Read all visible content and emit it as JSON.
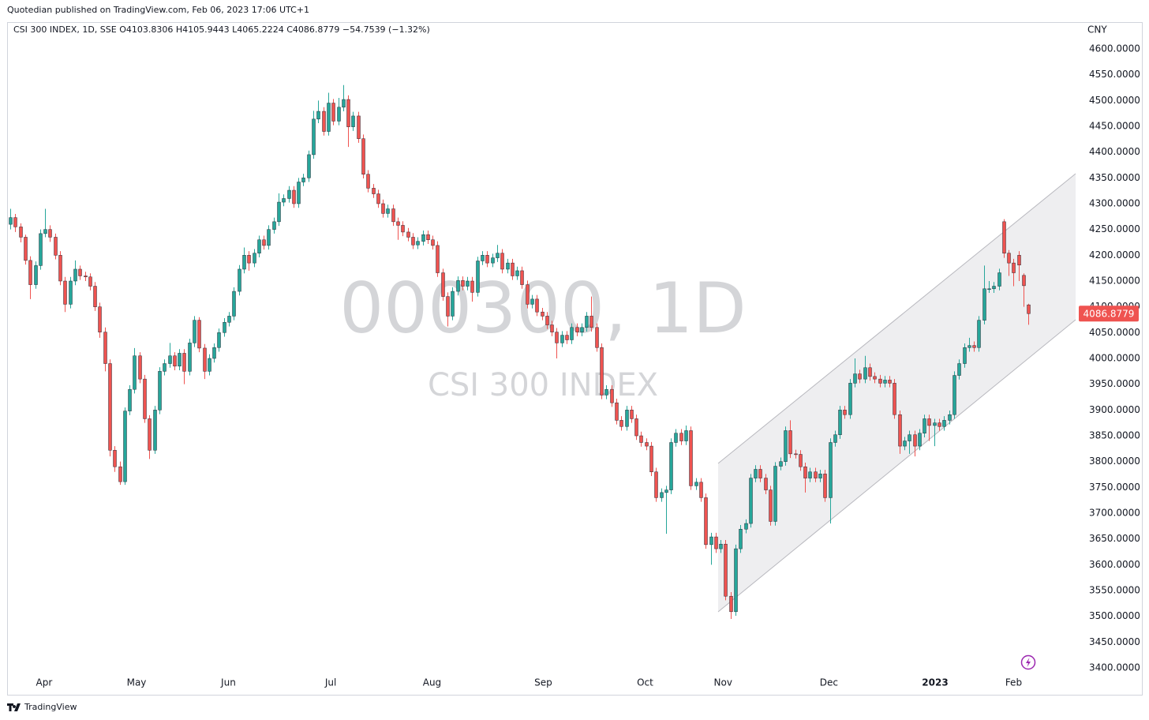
{
  "header": {
    "publisher": "Quotedian published on TradingView.com, Feb 06, 2023 17:06 UTC+1"
  },
  "footer": {
    "brand": "TradingView"
  },
  "chart_data": {
    "type": "candlestick",
    "legend": "CSI 300 INDEX, 1D, SSE  O4103.8306  H4105.9443  L4065.2224  C4086.8779  −54.7539 (−1.32%)",
    "watermark": "000300, 1D",
    "watermark_subtitle": "CSI 300 INDEX",
    "currency": "CNY",
    "up_color": "#26a69a",
    "down_color": "#ef5350",
    "grid": false,
    "xlim": [
      -0.5,
      214.8
    ],
    "ylim": [
      3348,
      4652
    ],
    "xticks": [
      {
        "value": 6.8,
        "label": "Apr"
      },
      {
        "value": 25.4,
        "label": "May"
      },
      {
        "value": 43.9,
        "label": "Jun"
      },
      {
        "value": 64.5,
        "label": "Jul"
      },
      {
        "value": 84.9,
        "label": "Aug"
      },
      {
        "value": 107.3,
        "label": "Sep"
      },
      {
        "value": 127.8,
        "label": "Oct"
      },
      {
        "value": 143.5,
        "label": "Nov"
      },
      {
        "value": 164.8,
        "label": "Dec"
      },
      {
        "value": 186.2,
        "label": "2023"
      },
      {
        "value": 202,
        "label": "Feb"
      }
    ],
    "yticks": [
      {
        "value": 3400,
        "label": "3400.0000"
      },
      {
        "value": 3450,
        "label": "3450.0000"
      },
      {
        "value": 3500,
        "label": "3500.0000"
      },
      {
        "value": 3550,
        "label": "3550.0000"
      },
      {
        "value": 3600,
        "label": "3600.0000"
      },
      {
        "value": 3650,
        "label": "3650.0000"
      },
      {
        "value": 3700,
        "label": "3700.0000"
      },
      {
        "value": 3750,
        "label": "3750.0000"
      },
      {
        "value": 3800,
        "label": "3800.0000"
      },
      {
        "value": 3850,
        "label": "3850.0000"
      },
      {
        "value": 3900,
        "label": "3900.0000"
      },
      {
        "value": 3950,
        "label": "3950.0000"
      },
      {
        "value": 4000,
        "label": "4000.0000"
      },
      {
        "value": 4050,
        "label": "4050.0000"
      },
      {
        "value": 4100,
        "label": "4100.0000"
      },
      {
        "value": 4150,
        "label": "4150.0000"
      },
      {
        "value": 4200,
        "label": "4200.0000"
      },
      {
        "value": 4250,
        "label": "4250.0000"
      },
      {
        "value": 4300,
        "label": "4300.0000"
      },
      {
        "value": 4350,
        "label": "4350.0000"
      },
      {
        "value": 4400,
        "label": "4400.0000"
      },
      {
        "value": 4450,
        "label": "4450.0000"
      },
      {
        "value": 4500,
        "label": "4500.0000"
      },
      {
        "value": 4550,
        "label": "4550.0000"
      },
      {
        "value": 4600,
        "label": "4600.0000"
      }
    ],
    "ohlc": [
      [
        4260,
        4290,
        4250,
        4273
      ],
      [
        4273,
        4280,
        4245,
        4255
      ],
      [
        4255,
        4262,
        4225,
        4235
      ],
      [
        4235,
        4240,
        4182,
        4190
      ],
      [
        4190,
        4198,
        4115,
        4143
      ],
      [
        4143,
        4188,
        4135,
        4180
      ],
      [
        4180,
        4250,
        4172,
        4242
      ],
      [
        4242,
        4290,
        4235,
        4250
      ],
      [
        4250,
        4258,
        4226,
        4235
      ],
      [
        4235,
        4242,
        4192,
        4200
      ],
      [
        4200,
        4208,
        4142,
        4150
      ],
      [
        4150,
        4158,
        4090,
        4105
      ],
      [
        4105,
        4158,
        4097,
        4150
      ],
      [
        4150,
        4190,
        4142,
        4173
      ],
      [
        4173,
        4180,
        4152,
        4160
      ],
      [
        4160,
        4168,
        4150,
        4158
      ],
      [
        4158,
        4165,
        4132,
        4140
      ],
      [
        4140,
        4148,
        4092,
        4100
      ],
      [
        4100,
        4108,
        4040,
        4051
      ],
      [
        4051,
        4060,
        3975,
        3990
      ],
      [
        3990,
        3998,
        3810,
        3822
      ],
      [
        3822,
        3830,
        3780,
        3790
      ],
      [
        3790,
        3800,
        3755,
        3761
      ],
      [
        3761,
        3905,
        3755,
        3898
      ],
      [
        3898,
        3948,
        3890,
        3940
      ],
      [
        3940,
        4020,
        3932,
        4005
      ],
      [
        4005,
        4012,
        3952,
        3960
      ],
      [
        3960,
        3968,
        3875,
        3883
      ],
      [
        3883,
        3890,
        3805,
        3822
      ],
      [
        3822,
        3908,
        3815,
        3900
      ],
      [
        3900,
        3983,
        3892,
        3975
      ],
      [
        3975,
        3998,
        3967,
        3990
      ],
      [
        3990,
        4030,
        3982,
        4005
      ],
      [
        4005,
        4012,
        3977,
        3985
      ],
      [
        3985,
        4018,
        3977,
        4010
      ],
      [
        4010,
        4018,
        3950,
        3975
      ],
      [
        3975,
        4038,
        3967,
        4030
      ],
      [
        4030,
        4082,
        4022,
        4074
      ],
      [
        4074,
        4080,
        4012,
        4020
      ],
      [
        4020,
        4028,
        3960,
        3975
      ],
      [
        3975,
        4008,
        3967,
        4000
      ],
      [
        4000,
        4029,
        3992,
        4021
      ],
      [
        4021,
        4058,
        4013,
        4050
      ],
      [
        4050,
        4078,
        4042,
        4070
      ],
      [
        4070,
        4090,
        4062,
        4082
      ],
      [
        4082,
        4138,
        4074,
        4130
      ],
      [
        4130,
        4181,
        4122,
        4173
      ],
      [
        4173,
        4215,
        4165,
        4200
      ],
      [
        4200,
        4208,
        4170,
        4185
      ],
      [
        4185,
        4212,
        4177,
        4204
      ],
      [
        4204,
        4238,
        4196,
        4230
      ],
      [
        4230,
        4238,
        4211,
        4219
      ],
      [
        4219,
        4258,
        4211,
        4250
      ],
      [
        4250,
        4273,
        4242,
        4265
      ],
      [
        4265,
        4320,
        4257,
        4303
      ],
      [
        4303,
        4318,
        4295,
        4310
      ],
      [
        4310,
        4334,
        4302,
        4326
      ],
      [
        4326,
        4334,
        4292,
        4300
      ],
      [
        4300,
        4350,
        4292,
        4342
      ],
      [
        4342,
        4358,
        4334,
        4350
      ],
      [
        4350,
        4403,
        4342,
        4395
      ],
      [
        4395,
        4480,
        4387,
        4464
      ],
      [
        4464,
        4500,
        4456,
        4479
      ],
      [
        4479,
        4487,
        4432,
        4440
      ],
      [
        4440,
        4515,
        4432,
        4495
      ],
      [
        4495,
        4503,
        4452,
        4460
      ],
      [
        4460,
        4505,
        4452,
        4487
      ],
      [
        4487,
        4530,
        4479,
        4502
      ],
      [
        4502,
        4510,
        4410,
        4449
      ],
      [
        4449,
        4478,
        4441,
        4470
      ],
      [
        4470,
        4478,
        4418,
        4426
      ],
      [
        4426,
        4434,
        4349,
        4357
      ],
      [
        4357,
        4365,
        4322,
        4330
      ],
      [
        4330,
        4338,
        4311,
        4319
      ],
      [
        4319,
        4327,
        4292,
        4300
      ],
      [
        4300,
        4308,
        4273,
        4281
      ],
      [
        4281,
        4298,
        4273,
        4290
      ],
      [
        4290,
        4298,
        4257,
        4265
      ],
      [
        4265,
        4273,
        4230,
        4258
      ],
      [
        4258,
        4266,
        4237,
        4245
      ],
      [
        4245,
        4253,
        4227,
        4235
      ],
      [
        4235,
        4243,
        4212,
        4220
      ],
      [
        4220,
        4235,
        4212,
        4227
      ],
      [
        4227,
        4248,
        4219,
        4240
      ],
      [
        4240,
        4248,
        4222,
        4230
      ],
      [
        4230,
        4238,
        4211,
        4219
      ],
      [
        4219,
        4227,
        4158,
        4166
      ],
      [
        4166,
        4174,
        4112,
        4120
      ],
      [
        4120,
        4128,
        4062,
        4082
      ],
      [
        4082,
        4138,
        4074,
        4130
      ],
      [
        4130,
        4159,
        4122,
        4151
      ],
      [
        4151,
        4159,
        4132,
        4140
      ],
      [
        4140,
        4158,
        4132,
        4150
      ],
      [
        4150,
        4158,
        4110,
        4128
      ],
      [
        4128,
        4197,
        4120,
        4189
      ],
      [
        4189,
        4208,
        4181,
        4200
      ],
      [
        4200,
        4208,
        4177,
        4185
      ],
      [
        4185,
        4203,
        4177,
        4195
      ],
      [
        4195,
        4220,
        4187,
        4204
      ],
      [
        4204,
        4212,
        4165,
        4173
      ],
      [
        4173,
        4193,
        4165,
        4185
      ],
      [
        4185,
        4193,
        4152,
        4160
      ],
      [
        4160,
        4178,
        4152,
        4170
      ],
      [
        4170,
        4178,
        4135,
        4143
      ],
      [
        4143,
        4151,
        4097,
        4105
      ],
      [
        4105,
        4123,
        4097,
        4115
      ],
      [
        4115,
        4123,
        4082,
        4090
      ],
      [
        4090,
        4098,
        4074,
        4082
      ],
      [
        4082,
        4090,
        4057,
        4065
      ],
      [
        4065,
        4073,
        4043,
        4051
      ],
      [
        4051,
        4059,
        4000,
        4030
      ],
      [
        4030,
        4053,
        4022,
        4045
      ],
      [
        4045,
        4053,
        4028,
        4036
      ],
      [
        4036,
        4068,
        4028,
        4060
      ],
      [
        4060,
        4068,
        4043,
        4051
      ],
      [
        4051,
        4068,
        4043,
        4060
      ],
      [
        4060,
        4090,
        4052,
        4082
      ],
      [
        4082,
        4120,
        4052,
        4060
      ],
      [
        4060,
        4068,
        4013,
        4021
      ],
      [
        4021,
        4029,
        3921,
        3929
      ],
      [
        3929,
        3948,
        3921,
        3940
      ],
      [
        3940,
        3948,
        3906,
        3914
      ],
      [
        3914,
        3922,
        3872,
        3880
      ],
      [
        3880,
        3888,
        3860,
        3868
      ],
      [
        3868,
        3908,
        3860,
        3900
      ],
      [
        3900,
        3908,
        3875,
        3883
      ],
      [
        3883,
        3891,
        3842,
        3850
      ],
      [
        3850,
        3858,
        3829,
        3837
      ],
      [
        3837,
        3845,
        3822,
        3830
      ],
      [
        3830,
        3838,
        3772,
        3780
      ],
      [
        3780,
        3788,
        3722,
        3730
      ],
      [
        3730,
        3748,
        3722,
        3740
      ],
      [
        3740,
        3753,
        3660,
        3745
      ],
      [
        3745,
        3845,
        3737,
        3837
      ],
      [
        3837,
        3863,
        3829,
        3855
      ],
      [
        3855,
        3863,
        3832,
        3840
      ],
      [
        3840,
        3870,
        3832,
        3860
      ],
      [
        3860,
        3868,
        3745,
        3753
      ],
      [
        3753,
        3768,
        3745,
        3760
      ],
      [
        3760,
        3768,
        3722,
        3730
      ],
      [
        3730,
        3738,
        3631,
        3639
      ],
      [
        3639,
        3662,
        3600,
        3654
      ],
      [
        3654,
        3662,
        3623,
        3631
      ],
      [
        3631,
        3648,
        3623,
        3640
      ],
      [
        3640,
        3648,
        3531,
        3539
      ],
      [
        3539,
        3547,
        3495,
        3509
      ],
      [
        3509,
        3639,
        3501,
        3631
      ],
      [
        3631,
        3677,
        3623,
        3669
      ],
      [
        3669,
        3688,
        3661,
        3680
      ],
      [
        3680,
        3776,
        3672,
        3768
      ],
      [
        3768,
        3793,
        3760,
        3785
      ],
      [
        3785,
        3793,
        3760,
        3768
      ],
      [
        3768,
        3776,
        3737,
        3745
      ],
      [
        3745,
        3753,
        3676,
        3684
      ],
      [
        3684,
        3799,
        3676,
        3791
      ],
      [
        3791,
        3808,
        3783,
        3800
      ],
      [
        3800,
        3868,
        3792,
        3860
      ],
      [
        3860,
        3880,
        3807,
        3815
      ],
      [
        3815,
        3823,
        3806,
        3814
      ],
      [
        3814,
        3822,
        3782,
        3790
      ],
      [
        3790,
        3798,
        3740,
        3768
      ],
      [
        3768,
        3788,
        3760,
        3780
      ],
      [
        3780,
        3788,
        3760,
        3768
      ],
      [
        3768,
        3784,
        3760,
        3776
      ],
      [
        3776,
        3784,
        3722,
        3730
      ],
      [
        3730,
        3845,
        3680,
        3837
      ],
      [
        3837,
        3860,
        3829,
        3852
      ],
      [
        3852,
        3908,
        3844,
        3900
      ],
      [
        3900,
        3908,
        3883,
        3891
      ],
      [
        3891,
        3960,
        3883,
        3952
      ],
      [
        3952,
        4000,
        3944,
        3970
      ],
      [
        3970,
        3978,
        3952,
        3960
      ],
      [
        3960,
        4005,
        3952,
        3982
      ],
      [
        3982,
        3990,
        3957,
        3965
      ],
      [
        3965,
        3973,
        3952,
        3960
      ],
      [
        3960,
        3968,
        3944,
        3952
      ],
      [
        3952,
        3966,
        3944,
        3958
      ],
      [
        3958,
        3966,
        3944,
        3952
      ],
      [
        3952,
        3960,
        3883,
        3891
      ],
      [
        3891,
        3899,
        3815,
        3830
      ],
      [
        3830,
        3848,
        3822,
        3840
      ],
      [
        3840,
        3860,
        3815,
        3852
      ],
      [
        3852,
        3860,
        3810,
        3830
      ],
      [
        3830,
        3863,
        3822,
        3855
      ],
      [
        3855,
        3891,
        3847,
        3883
      ],
      [
        3883,
        3891,
        3840,
        3870
      ],
      [
        3870,
        3883,
        3830,
        3875
      ],
      [
        3875,
        3883,
        3860,
        3868
      ],
      [
        3868,
        3888,
        3860,
        3880
      ],
      [
        3880,
        3899,
        3872,
        3891
      ],
      [
        3891,
        3975,
        3883,
        3967
      ],
      [
        3967,
        3998,
        3959,
        3990
      ],
      [
        3990,
        4029,
        3982,
        4021
      ],
      [
        4021,
        4040,
        4013,
        4025
      ],
      [
        4025,
        4033,
        4013,
        4021
      ],
      [
        4021,
        4082,
        4013,
        4074
      ],
      [
        4074,
        4180,
        4066,
        4135
      ],
      [
        4135,
        4150,
        4127,
        4135
      ],
      [
        4135,
        4148,
        4127,
        4140
      ],
      [
        4140,
        4174,
        4132,
        4166
      ],
      [
        4265,
        4270,
        4195,
        4204
      ],
      [
        4204,
        4210,
        4160,
        4185
      ],
      [
        4185,
        4193,
        4140,
        4166
      ],
      [
        4200,
        4208,
        4150,
        4181
      ],
      [
        4161,
        4165,
        4100,
        4141
      ],
      [
        4103.8306,
        4105.9443,
        4065.2224,
        4086.8779
      ]
    ]
  }
}
